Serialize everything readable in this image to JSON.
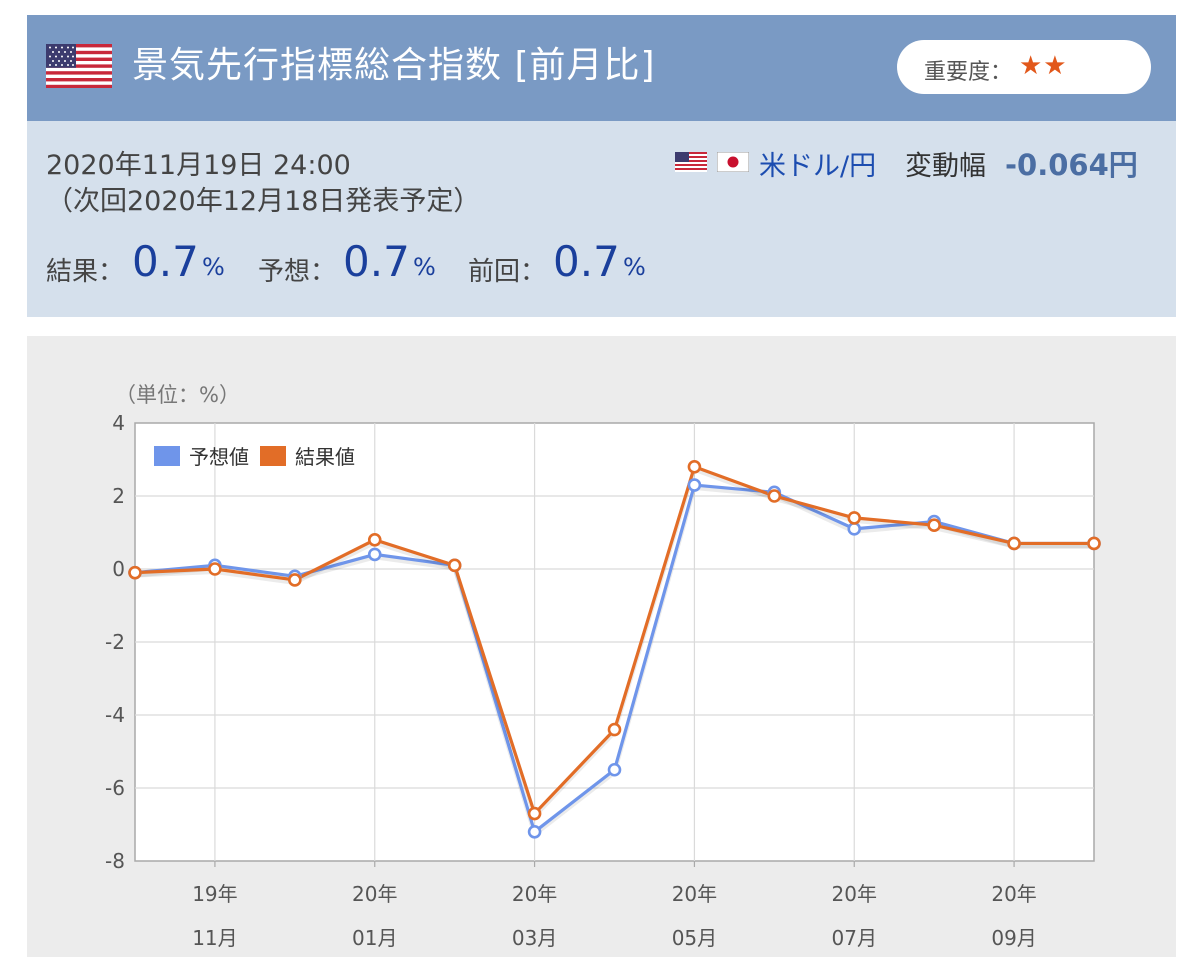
{
  "header": {
    "flag_icon": "us-flag-icon",
    "title": "景気先行指標総合指数 [前月比]",
    "importance_label": "重要度：",
    "importance_stars": "★★"
  },
  "info": {
    "date": "2020年11月19日 24:00",
    "next": "（次回2020年12月18日発表予定）",
    "pair": {
      "flags": [
        "us-flag-icon",
        "jp-flag-icon"
      ],
      "name": "米ドル/円",
      "label": "変動幅",
      "value": "-0.064円"
    },
    "result_label": "結果：",
    "result_value": "0.7",
    "result_unit": "%",
    "forecast_label": "予想：",
    "forecast_value": "0.7",
    "forecast_unit": "%",
    "previous_label": "前回：",
    "previous_value": "0.7",
    "previous_unit": "%"
  },
  "colors": {
    "forecast": "#6f95ea",
    "result": "#e26d27",
    "header_bg": "#7a9ac4",
    "info_bg": "#d5e0ec"
  },
  "chart_data": {
    "type": "line",
    "unit_label": "（単位：%）",
    "ylim": [
      -8,
      4
    ],
    "yticks": [
      "4",
      "2",
      "0",
      "-2",
      "-4",
      "-6",
      "-8"
    ],
    "x_tick_labels": [
      {
        "year": "19年",
        "month": "11月"
      },
      {
        "year": "20年",
        "month": "01月"
      },
      {
        "year": "20年",
        "month": "03月"
      },
      {
        "year": "20年",
        "month": "05月"
      },
      {
        "year": "20年",
        "month": "07月"
      },
      {
        "year": "20年",
        "month": "09月"
      }
    ],
    "x": [
      "2019-10",
      "2019-11",
      "2019-12",
      "2020-01",
      "2020-02",
      "2020-03",
      "2020-04",
      "2020-05",
      "2020-06",
      "2020-07",
      "2020-08",
      "2020-09",
      "2020-10"
    ],
    "legend_position": "top-left",
    "grid": true,
    "series": [
      {
        "name": "予想値",
        "values": [
          -0.1,
          0.1,
          -0.2,
          0.4,
          0.1,
          -7.2,
          -5.5,
          2.3,
          2.1,
          1.1,
          1.3,
          0.7,
          0.7
        ]
      },
      {
        "name": "結果値",
        "values": [
          -0.1,
          0.0,
          -0.3,
          0.8,
          0.1,
          -6.7,
          -4.4,
          2.8,
          2.0,
          1.4,
          1.2,
          0.7,
          0.7
        ]
      }
    ]
  }
}
